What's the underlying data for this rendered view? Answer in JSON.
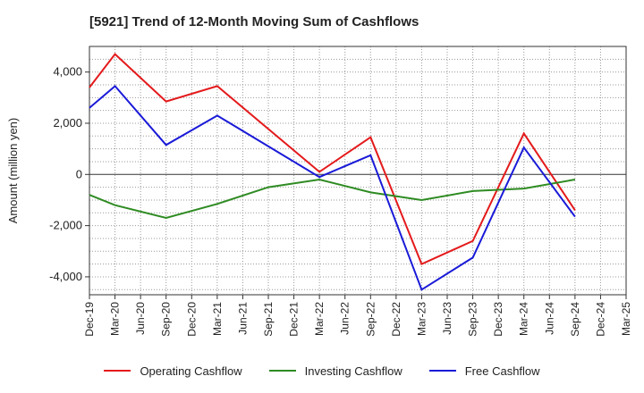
{
  "chart_data": {
    "type": "line",
    "title": "[5921]  Trend of 12-Month Moving Sum of Cashflows",
    "ylabel": "Amount (million yen)",
    "xlabel": "",
    "x": [
      "Dec-19",
      "Mar-20",
      "Jun-20",
      "Sep-20",
      "Dec-20",
      "Mar-21",
      "Jun-21",
      "Sep-21",
      "Dec-21",
      "Mar-22",
      "Jun-22",
      "Sep-22",
      "Dec-22",
      "Mar-23",
      "Jun-23",
      "Sep-23",
      "Dec-23",
      "Mar-24",
      "Jun-24",
      "Sep-24",
      "Dec-24",
      "Mar-25"
    ],
    "ylim": [
      -4700,
      5000
    ],
    "yticks": [
      -4000,
      -2000,
      0,
      2000,
      4000
    ],
    "ytick_labels": [
      "-4,000",
      "-2,000",
      "0",
      "2,000",
      "4,000"
    ],
    "grid": true,
    "legend_position": "bottom",
    "series": [
      {
        "name": "Operating Cashflow",
        "color": "#e41a1c",
        "values": [
          3400,
          4700,
          null,
          2850,
          null,
          3450,
          null,
          null,
          null,
          100,
          null,
          1450,
          null,
          -3500,
          null,
          -2600,
          null,
          1600,
          null,
          -1400,
          null,
          null
        ]
      },
      {
        "name": "Investing Cashflow",
        "color": "#2e8b22",
        "values": [
          -800,
          -1200,
          null,
          -1700,
          null,
          -1150,
          null,
          -500,
          null,
          -200,
          null,
          -700,
          null,
          -1000,
          null,
          -650,
          null,
          -550,
          null,
          -200,
          null,
          null
        ]
      },
      {
        "name": "Free Cashflow",
        "color": "#1a1ad8",
        "values": [
          2600,
          3450,
          null,
          1150,
          null,
          2300,
          null,
          null,
          null,
          -100,
          null,
          750,
          null,
          -4500,
          null,
          -3250,
          null,
          1050,
          null,
          -1650,
          null,
          null
        ]
      }
    ]
  }
}
